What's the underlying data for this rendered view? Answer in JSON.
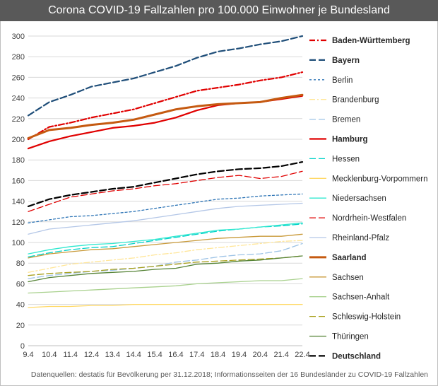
{
  "header": {
    "title": "Corona COVID-19 Fallzahlen pro 100.000 Einwohner je Bundesland",
    "source": "Datenquellen: destatis für Bevölkerung per 31.12.2018; Informationsseiten der 16 Bundesländer zu COVID-19 Fallzahlen"
  },
  "chart_data": {
    "type": "line",
    "title": "Corona COVID-19 Fallzahlen pro 100.000 Einwohner je Bundesland",
    "xlabel": "",
    "ylabel": "",
    "ylim": [
      0,
      300
    ],
    "yticks": [
      0,
      20,
      40,
      60,
      80,
      100,
      120,
      140,
      160,
      180,
      200,
      220,
      240,
      260,
      280,
      300
    ],
    "grid": true,
    "legend_position": "right",
    "categories": [
      "9.4",
      "10.4",
      "11.4",
      "12.4",
      "13.4",
      "14.4",
      "15.4",
      "16.4",
      "17.4",
      "18.4",
      "19.4",
      "20.4",
      "21.4",
      "22.4"
    ],
    "series": [
      {
        "name": "Baden-Württemberg",
        "color": "#e00000",
        "dash": "dashdot",
        "bold": true,
        "values": [
          200,
          212,
          216,
          221,
          225,
          229,
          235,
          241,
          247,
          250,
          253,
          257,
          260,
          265
        ]
      },
      {
        "name": "Bayern",
        "color": "#1f4e79",
        "dash": "longdash",
        "bold": true,
        "values": [
          223,
          236,
          243,
          251,
          255,
          259,
          265,
          271,
          279,
          285,
          288,
          292,
          295,
          300
        ]
      },
      {
        "name": "Berlin",
        "color": "#2e75b6",
        "dash": "shortdash",
        "bold": false,
        "values": [
          119,
          122,
          125,
          126,
          128,
          130,
          133,
          136,
          139,
          142,
          143,
          145,
          146,
          147
        ]
      },
      {
        "name": "Brandenburg",
        "color": "#ffe699",
        "dash": "dashdot",
        "bold": false,
        "values": [
          71,
          75,
          79,
          81,
          83,
          85,
          88,
          90,
          93,
          95,
          97,
          99,
          101,
          102
        ]
      },
      {
        "name": "Bremen",
        "color": "#9dc3e6",
        "dash": "longdash",
        "bold": false,
        "values": [
          65,
          68,
          70,
          72,
          73,
          75,
          77,
          81,
          83,
          86,
          88,
          89,
          92,
          99
        ]
      },
      {
        "name": "Hamburg",
        "color": "#e00000",
        "dash": "solid",
        "bold": true,
        "values": [
          191,
          198,
          203,
          207,
          211,
          213,
          216,
          221,
          228,
          233,
          235,
          236,
          239,
          242
        ]
      },
      {
        "name": "Hessen",
        "color": "#00d2c8",
        "dash": "longdash",
        "bold": false,
        "values": [
          86,
          90,
          93,
          95,
          96,
          99,
          102,
          105,
          108,
          111,
          113,
          115,
          116,
          118
        ]
      },
      {
        "name": "Mecklenburg-Vorpommern",
        "color": "#ffd966",
        "dash": "solid",
        "bold": false,
        "values": [
          37,
          38,
          38,
          39,
          39,
          40,
          40,
          40,
          40,
          40,
          40,
          40,
          40,
          40
        ]
      },
      {
        "name": "Niedersachsen",
        "color": "#30e8d0",
        "dash": "solid",
        "bold": false,
        "values": [
          89,
          93,
          96,
          98,
          99,
          101,
          103,
          106,
          109,
          112,
          113,
          115,
          117,
          119
        ]
      },
      {
        "name": "Nordrhein-Westfalen",
        "color": "#e00000",
        "dash": "longdash",
        "bold": false,
        "values": [
          130,
          137,
          144,
          147,
          150,
          152,
          155,
          157,
          160,
          163,
          165,
          162,
          164,
          169
        ]
      },
      {
        "name": "Rheinland-Pfalz",
        "color": "#b4c7e7",
        "dash": "solid",
        "bold": false,
        "values": [
          108,
          113,
          115,
          117,
          119,
          121,
          124,
          127,
          130,
          133,
          135,
          136,
          137,
          138
        ]
      },
      {
        "name": "Saarland",
        "color": "#c55a11",
        "dash": "solid",
        "bold": true,
        "values": [
          201,
          209,
          211,
          214,
          216,
          219,
          224,
          229,
          232,
          234,
          235,
          236,
          240,
          243
        ]
      },
      {
        "name": "Sachsen",
        "color": "#c99a3a",
        "dash": "solid",
        "bold": false,
        "values": [
          85,
          89,
          91,
          93,
          94,
          96,
          98,
          100,
          102,
          104,
          105,
          106,
          106,
          108
        ]
      },
      {
        "name": "Sachsen-Anhalt",
        "color": "#a9d18e",
        "dash": "solid",
        "bold": false,
        "values": [
          51,
          52,
          53,
          54,
          55,
          56,
          57,
          58,
          60,
          61,
          62,
          63,
          63,
          65
        ]
      },
      {
        "name": "Schleswig-Holstein",
        "color": "#a9a01c",
        "dash": "longdash",
        "bold": false,
        "values": [
          68,
          70,
          71,
          72,
          74,
          75,
          77,
          79,
          81,
          82,
          83,
          84,
          85,
          87
        ]
      },
      {
        "name": "Thüringen",
        "color": "#548235",
        "dash": "solid",
        "bold": false,
        "values": [
          62,
          66,
          68,
          70,
          71,
          72,
          74,
          75,
          79,
          80,
          82,
          83,
          85,
          87
        ]
      },
      {
        "name": "Deutschland",
        "color": "#000000",
        "dash": "longdash",
        "bold": true,
        "values": [
          135,
          142,
          146,
          149,
          152,
          154,
          158,
          162,
          166,
          169,
          171,
          172,
          174,
          178
        ]
      }
    ]
  }
}
